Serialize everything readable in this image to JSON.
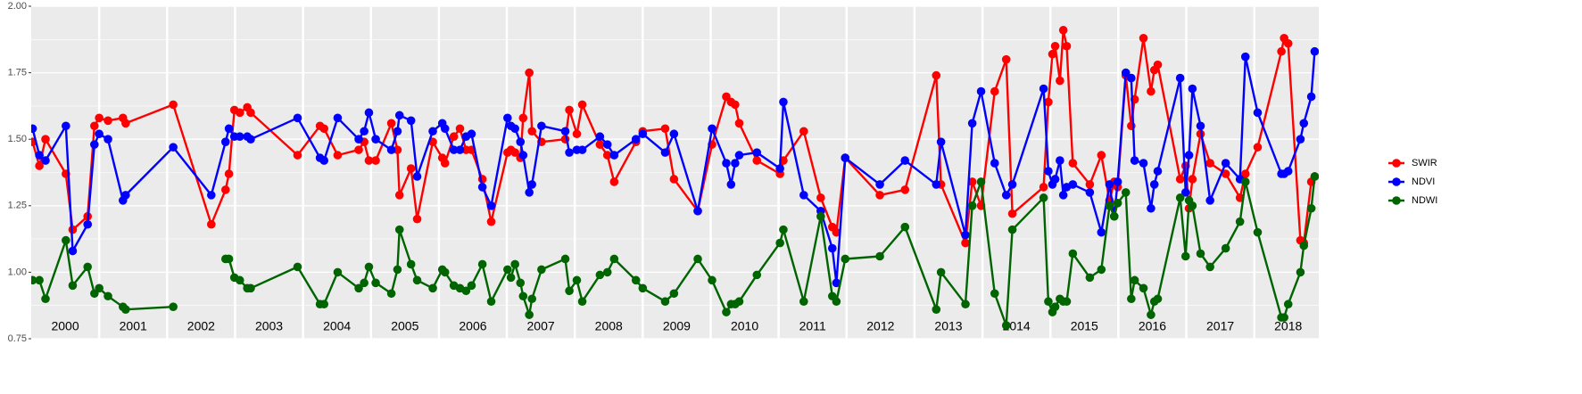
{
  "chart_data": {
    "type": "line",
    "x": [
      2000.02,
      2000.12,
      2000.21,
      2000.51,
      2000.61,
      2000.83,
      2000.93,
      2001.0,
      2001.13,
      2001.35,
      2001.39,
      2002.09,
      2002.65,
      2002.86,
      2002.91,
      2002.99,
      2003.07,
      2003.18,
      2003.23,
      2003.92,
      2004.25,
      2004.31,
      2004.51,
      2004.82,
      2004.9,
      2004.97,
      2005.07,
      2005.3,
      2005.39,
      2005.42,
      2005.59,
      2005.68,
      2005.91,
      2006.05,
      2006.09,
      2006.22,
      2006.31,
      2006.4,
      2006.48,
      2006.64,
      2006.77,
      2007.01,
      2007.06,
      2007.12,
      2007.2,
      2007.24,
      2007.33,
      2007.37,
      2007.51,
      2007.86,
      2007.92,
      2008.03,
      2008.11,
      2008.37,
      2008.48,
      2008.58,
      2008.9,
      2009.0,
      2009.33,
      2009.46,
      2009.81,
      2010.02,
      2010.23,
      2010.3,
      2010.36,
      2010.42,
      2010.68,
      2011.02,
      2011.07,
      2011.37,
      2011.62,
      2011.79,
      2011.85,
      2011.98,
      2012.49,
      2012.86,
      2013.32,
      2013.39,
      2013.75,
      2013.85,
      2013.98,
      2014.18,
      2014.35,
      2014.44,
      2014.9,
      2014.97,
      2015.03,
      2015.07,
      2015.14,
      2015.19,
      2015.24,
      2015.33,
      2015.58,
      2015.75,
      2015.87,
      2015.94,
      2015.99,
      2016.11,
      2016.19,
      2016.24,
      2016.37,
      2016.48,
      2016.53,
      2016.58,
      2016.91,
      2016.99,
      2017.04,
      2017.09,
      2017.21,
      2017.35,
      2017.58,
      2017.79,
      2017.87,
      2018.05,
      2018.4,
      2018.44,
      2018.5,
      2018.68,
      2018.73,
      2018.84,
      2018.89
    ],
    "series": [
      {
        "name": "SWIR",
        "color": "#ff0000",
        "values": [
          1.49,
          1.4,
          1.5,
          1.37,
          1.16,
          1.21,
          1.55,
          1.58,
          1.57,
          1.58,
          1.56,
          1.63,
          1.18,
          1.31,
          1.37,
          1.61,
          1.6,
          1.62,
          1.6,
          1.44,
          1.55,
          1.54,
          1.44,
          1.46,
          1.49,
          1.42,
          1.42,
          1.56,
          1.46,
          1.29,
          1.39,
          1.2,
          1.49,
          1.43,
          1.41,
          1.51,
          1.54,
          1.46,
          1.46,
          1.35,
          1.19,
          1.45,
          1.46,
          1.45,
          1.43,
          1.58,
          1.75,
          1.53,
          1.49,
          1.5,
          1.61,
          1.52,
          1.63,
          1.48,
          1.44,
          1.34,
          1.49,
          1.53,
          1.54,
          1.35,
          1.23,
          1.48,
          1.66,
          1.64,
          1.63,
          1.56,
          1.42,
          1.37,
          1.42,
          1.53,
          1.28,
          1.17,
          1.15,
          1.43,
          1.29,
          1.31,
          1.74,
          1.33,
          1.11,
          1.34,
          1.25,
          1.68,
          1.8,
          1.22,
          1.32,
          1.64,
          1.82,
          1.85,
          1.72,
          1.91,
          1.85,
          1.41,
          1.33,
          1.44,
          1.27,
          1.34,
          1.32,
          1.74,
          1.55,
          1.65,
          1.88,
          1.68,
          1.76,
          1.78,
          1.35,
          1.4,
          1.24,
          1.35,
          1.52,
          1.41,
          1.37,
          1.28,
          1.37,
          1.47,
          1.83,
          1.88,
          1.86,
          1.12,
          1.11,
          1.34,
          1.36
        ]
      },
      {
        "name": "NDVI",
        "color": "#0000ff",
        "values": [
          1.54,
          1.44,
          1.42,
          1.55,
          1.08,
          1.18,
          1.48,
          1.52,
          1.5,
          1.27,
          1.29,
          1.47,
          1.29,
          1.49,
          1.54,
          1.51,
          1.51,
          1.51,
          1.5,
          1.58,
          1.43,
          1.42,
          1.58,
          1.5,
          1.53,
          1.6,
          1.5,
          1.46,
          1.53,
          1.59,
          1.57,
          1.36,
          1.53,
          1.56,
          1.54,
          1.46,
          1.46,
          1.51,
          1.52,
          1.32,
          1.25,
          1.58,
          1.55,
          1.54,
          1.49,
          1.44,
          1.3,
          1.33,
          1.55,
          1.53,
          1.45,
          1.46,
          1.46,
          1.51,
          1.48,
          1.44,
          1.5,
          1.52,
          1.45,
          1.52,
          1.23,
          1.54,
          1.41,
          1.33,
          1.41,
          1.44,
          1.45,
          1.39,
          1.64,
          1.29,
          1.23,
          1.09,
          0.96,
          1.43,
          1.33,
          1.42,
          1.33,
          1.49,
          1.14,
          1.56,
          1.68,
          1.41,
          1.29,
          1.33,
          1.69,
          1.38,
          1.33,
          1.35,
          1.42,
          1.29,
          1.32,
          1.33,
          1.3,
          1.15,
          1.33,
          1.21,
          1.34,
          1.75,
          1.73,
          1.42,
          1.41,
          1.24,
          1.33,
          1.38,
          1.73,
          1.3,
          1.44,
          1.69,
          1.55,
          1.27,
          1.41,
          1.35,
          1.81,
          1.6,
          1.37,
          1.37,
          1.38,
          1.5,
          1.56,
          1.66,
          1.83
        ]
      },
      {
        "name": "NDWI",
        "color": "#006400",
        "values": [
          0.97,
          0.97,
          0.9,
          1.12,
          0.95,
          1.02,
          0.92,
          0.94,
          0.91,
          0.87,
          0.86,
          0.87,
          null,
          1.05,
          1.05,
          0.98,
          0.97,
          0.94,
          0.94,
          1.02,
          0.88,
          0.88,
          1.0,
          0.94,
          0.96,
          1.02,
          0.96,
          0.92,
          1.01,
          1.16,
          1.03,
          0.97,
          0.94,
          1.01,
          1.0,
          0.95,
          0.94,
          0.93,
          0.95,
          1.03,
          0.89,
          1.01,
          0.98,
          1.03,
          0.96,
          0.91,
          0.84,
          0.9,
          1.01,
          1.05,
          0.93,
          0.97,
          0.89,
          0.99,
          1.0,
          1.05,
          0.97,
          0.94,
          0.89,
          0.92,
          1.05,
          0.97,
          0.85,
          0.88,
          0.88,
          0.89,
          0.99,
          1.11,
          1.16,
          0.89,
          1.21,
          0.91,
          0.89,
          1.05,
          1.06,
          1.17,
          0.86,
          1.0,
          0.88,
          1.25,
          1.34,
          0.92,
          0.8,
          1.16,
          1.28,
          0.89,
          0.85,
          0.87,
          0.9,
          0.89,
          0.89,
          1.07,
          0.98,
          1.01,
          1.25,
          1.21,
          1.26,
          1.3,
          0.9,
          0.97,
          0.94,
          0.84,
          0.89,
          0.9,
          1.28,
          1.06,
          1.27,
          1.25,
          1.07,
          1.02,
          1.09,
          1.19,
          1.34,
          1.15,
          0.83,
          0.83,
          0.88,
          1.0,
          1.1,
          1.24,
          1.36
        ]
      }
    ],
    "xlim": [
      2000.0,
      2018.95
    ],
    "xticks": [
      2001,
      2002,
      2003,
      2004,
      2005,
      2006,
      2007,
      2008,
      2009,
      2010,
      2011,
      2012,
      2013,
      2014,
      2015,
      2016,
      2017,
      2018
    ],
    "ylim": [
      0.75,
      2.0
    ],
    "yticks": [
      {
        "value": 0.75,
        "label": "0.75"
      },
      {
        "value": 1.0,
        "label": "1.00"
      },
      {
        "value": 1.25,
        "label": "1.25"
      },
      {
        "value": 1.5,
        "label": "1.50"
      },
      {
        "value": 1.75,
        "label": "1.75"
      },
      {
        "value": 2.0,
        "label": "2.00"
      }
    ],
    "annotations": [
      {
        "x": 2000.5,
        "text": "2000"
      },
      {
        "x": 2001.5,
        "text": "2001"
      },
      {
        "x": 2002.5,
        "text": "2002"
      },
      {
        "x": 2003.5,
        "text": "2003"
      },
      {
        "x": 2004.5,
        "text": "2004"
      },
      {
        "x": 2005.5,
        "text": "2005"
      },
      {
        "x": 2006.5,
        "text": "2006"
      },
      {
        "x": 2007.5,
        "text": "2007"
      },
      {
        "x": 2008.5,
        "text": "2008"
      },
      {
        "x": 2009.5,
        "text": "2009"
      },
      {
        "x": 2010.5,
        "text": "2010"
      },
      {
        "x": 2011.5,
        "text": "2011"
      },
      {
        "x": 2012.5,
        "text": "2012"
      },
      {
        "x": 2013.5,
        "text": "2013"
      },
      {
        "x": 2014.5,
        "text": "2014"
      },
      {
        "x": 2015.5,
        "text": "2015"
      },
      {
        "x": 2016.5,
        "text": "2016"
      },
      {
        "x": 2017.5,
        "text": "2017"
      },
      {
        "x": 2018.5,
        "text": "2018"
      }
    ],
    "grid": true,
    "legend": "right"
  }
}
